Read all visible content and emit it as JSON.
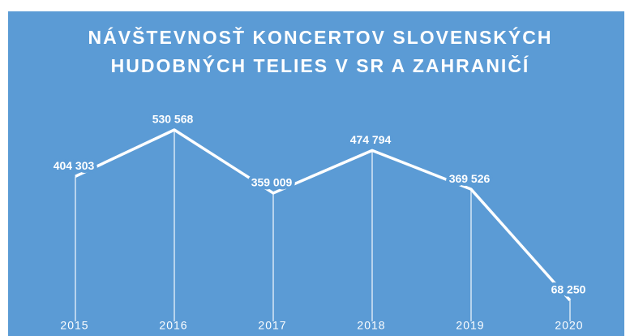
{
  "chart_data": {
    "type": "line",
    "title": [
      "NÁVŠTEVNOSŤ KONCERTOV SLOVENSKÝCH",
      "HUDOBNÝCH TELIES V SR A ZAHRANIČÍ"
    ],
    "categories": [
      "2015",
      "2016",
      "2017",
      "2018",
      "2019",
      "2020"
    ],
    "values": [
      404303,
      530568,
      359009,
      474794,
      369526,
      68250
    ],
    "value_labels": [
      "404 303",
      "530 568",
      "359 009",
      "474 794",
      "369 526",
      "68 250"
    ],
    "color": "#ffffff",
    "background": "#5b9bd5"
  }
}
